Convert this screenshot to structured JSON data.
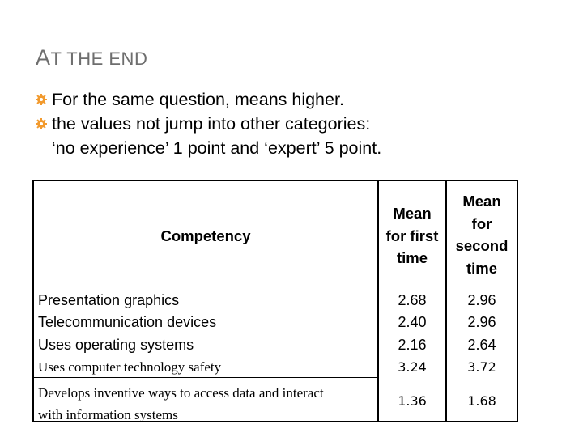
{
  "slide": {
    "title_first": "A",
    "title_rest": "T THE END"
  },
  "bullets": {
    "line1": "For the same question, means higher.",
    "line2": "the values not jump into other categories:",
    "line3": "‘no experience’ 1 point and ‘expert’ 5 point.",
    "icon": "gear-icon",
    "icon_color": "#f29a2e"
  },
  "table": {
    "headers": {
      "competency": "Competency",
      "first": [
        "Mean",
        "for first",
        "time"
      ],
      "second": [
        "Mean",
        "for",
        "second",
        "time"
      ]
    },
    "rows": [
      {
        "competency": "Presentation graphics",
        "first": "2.68",
        "second": "2.96"
      },
      {
        "competency": "Telecommunication devices",
        "first": "2.40",
        "second": "2.96"
      },
      {
        "competency": "Uses operating systems",
        "first": "2.16",
        "second": "2.64"
      },
      {
        "competency": "Uses computer technology safety",
        "first": "3.24",
        "second": "3.72"
      },
      {
        "competency": "Develops inventive ways to access data and interact",
        "competency_line2": "with information systems",
        "first": "1.36",
        "second": "1.68"
      }
    ]
  }
}
